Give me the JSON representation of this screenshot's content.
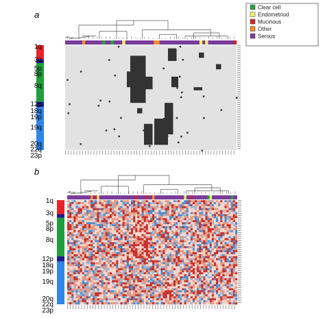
{
  "panels": [
    {
      "label": "a",
      "chromosome_labels": [
        "1q",
        "3q",
        "5p",
        "8p",
        "8q",
        "12p",
        "18q",
        "19p",
        "19q",
        "20q",
        "22q",
        "23p"
      ],
      "description_type": "binary"
    },
    {
      "label": "b",
      "chromosome_labels": [
        "1q",
        "3q",
        "5p",
        "8p",
        "8q",
        "12p",
        "18q",
        "19p",
        "19q",
        "20q",
        "22q",
        "23p"
      ],
      "description_type": "continuous"
    }
  ],
  "legend": {
    "items": [
      {
        "label": "Clear cell",
        "color": "#2e9e3e"
      },
      {
        "label": "Endometriod",
        "color": "#f2ee6a"
      },
      {
        "label": "Mucinous",
        "color": "#d4242a"
      },
      {
        "label": "Other",
        "color": "#f08c2e"
      },
      {
        "label": "Serous",
        "color": "#7a3c9a"
      }
    ]
  },
  "colors": {
    "chrom_bar": [
      "#e8242a",
      "#1f9e3e",
      "#1c1a8c",
      "#2f86e8"
    ],
    "binary_on": "#333333",
    "binary_off": "#e2e2e2",
    "heat_low": "#4f8ecb",
    "heat_mid": "#f4d6cd",
    "heat_high": "#c8322e",
    "dendrogram": "#555555"
  }
}
